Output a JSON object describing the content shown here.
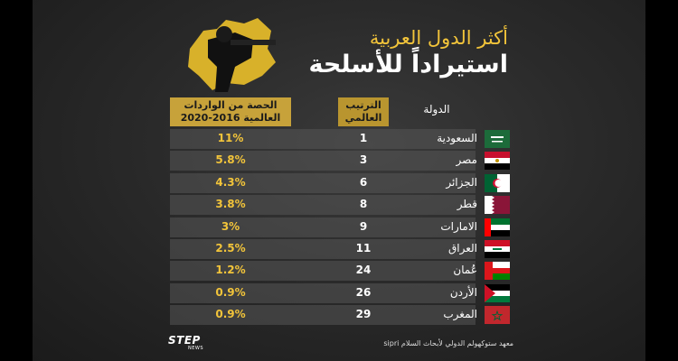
{
  "title": {
    "line1": "أكثر الدول العربية",
    "line2": "استيراداً للأسلحة"
  },
  "headers": {
    "share": "الحصة من الواردات العالمية 2016-2020",
    "rank": "الترتيب العالمي",
    "country": "الدولة"
  },
  "rows": [
    {
      "country": "السعودية",
      "rank": "1",
      "share": "11%",
      "flag": "saudi-flag"
    },
    {
      "country": "مصر",
      "rank": "3",
      "share": "5.8%",
      "flag": "egypt-flag"
    },
    {
      "country": "الجزائر",
      "rank": "6",
      "share": "4.3%",
      "flag": "algeria-flag"
    },
    {
      "country": "قطر",
      "rank": "8",
      "share": "3.8%",
      "flag": "qatar-flag"
    },
    {
      "country": "الامارات",
      "rank": "9",
      "share": "3%",
      "flag": "uae-flag"
    },
    {
      "country": "العراق",
      "rank": "11",
      "share": "2.5%",
      "flag": "iraq-flag"
    },
    {
      "country": "عُمان",
      "rank": "24",
      "share": "1.2%",
      "flag": "oman-flag"
    },
    {
      "country": "الأردن",
      "rank": "26",
      "share": "0.9%",
      "flag": "jordan-flag"
    },
    {
      "country": "المغرب",
      "rank": "29",
      "share": "0.9%",
      "flag": "morocco-flag"
    }
  ],
  "footer": {
    "source": "معهد ستوكهولم الدولي لأبحاث السلام sipri",
    "logo_main": "STEP",
    "logo_sub": "NEWS"
  },
  "colors": {
    "accent": "#f2c43a",
    "header_bg": "#c7a23a",
    "background": "#2a2a2a"
  }
}
